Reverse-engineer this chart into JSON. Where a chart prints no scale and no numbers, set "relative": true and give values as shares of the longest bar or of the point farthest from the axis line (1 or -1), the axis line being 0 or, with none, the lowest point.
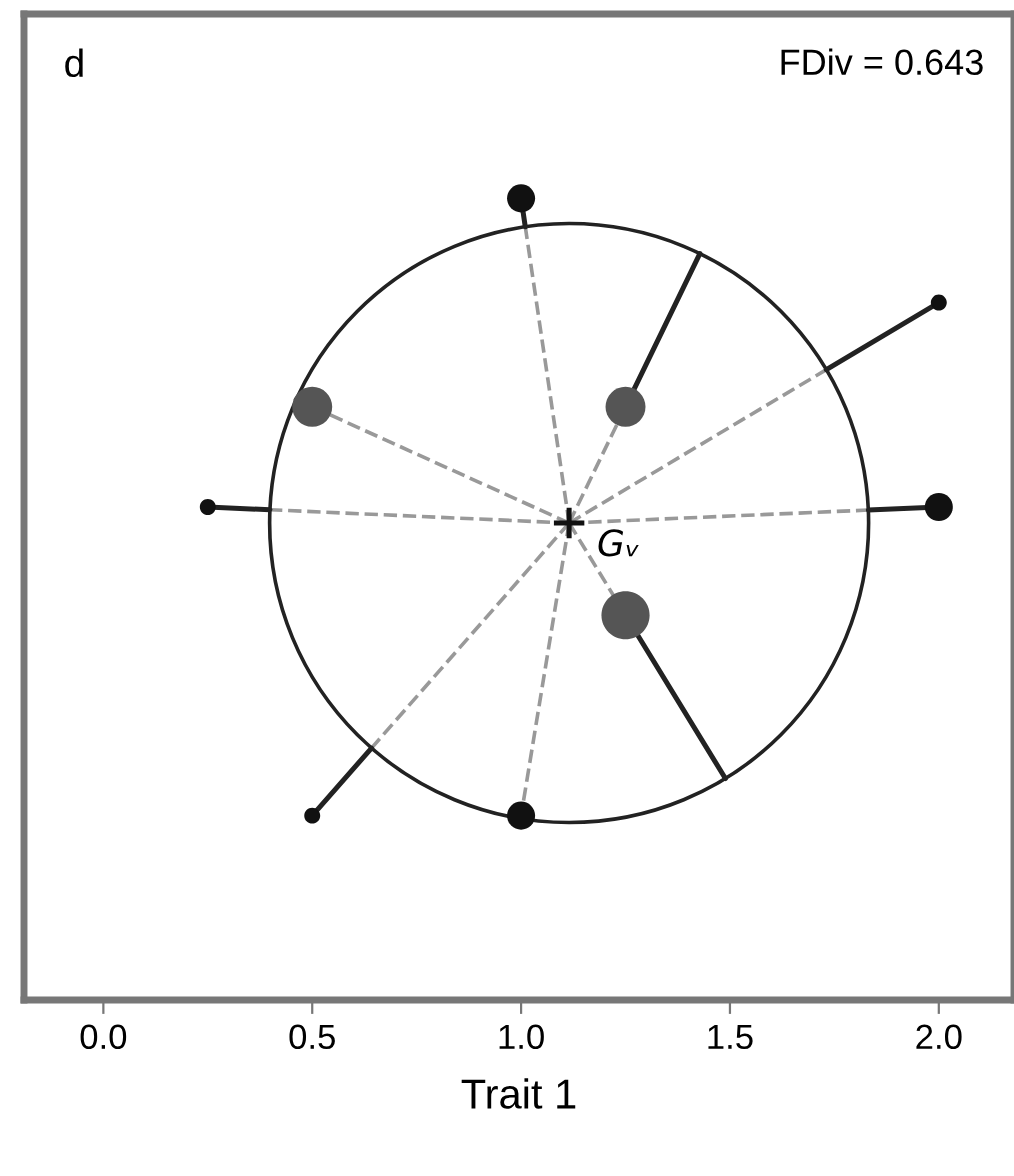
{
  "chart_data": {
    "type": "scatter",
    "relative": true,
    "xlabel": "Trait 1",
    "xlim": [
      -0.19,
      2.18
    ],
    "xticks": [
      {
        "value": 0.0,
        "label": "0.0"
      },
      {
        "value": 0.5,
        "label": "0.5"
      },
      {
        "value": 1.0,
        "label": "1.0"
      },
      {
        "value": 1.5,
        "label": "1.5"
      },
      {
        "value": 2.0,
        "label": "2.0"
      }
    ],
    "tick_labels": "x",
    "grid": false,
    "annotations": [
      "d",
      "FDiv = 0.643",
      {
        "text": "Gᵥ",
        "x": 1.115,
        "y": 0.595
      }
    ],
    "series": [
      {
        "type": "scatter",
        "marker": "circle",
        "x": [
          1.0,
          2.0,
          0.5,
          1.25,
          0.25,
          2.0,
          1.25,
          0.5,
          1.0
        ],
        "values": [
          1.0,
          0.87,
          0.74,
          0.74,
          0.615,
          0.615,
          0.48,
          0.23,
          0.23
        ],
        "sizes": [
          0.34,
          0.11,
          0.69,
          0.69,
          0.11,
          0.34,
          1.0,
          0.11,
          0.34
        ],
        "colors": [
          "#111111",
          "#111111",
          "#555555",
          "#555555",
          "#111111",
          "#111111",
          "#555555",
          "#111111",
          "#111111"
        ]
      },
      {
        "type": "scatter",
        "marker": "cross",
        "x": [
          1.115
        ],
        "values": [
          0.595
        ],
        "color": "#111111"
      }
    ]
  }
}
